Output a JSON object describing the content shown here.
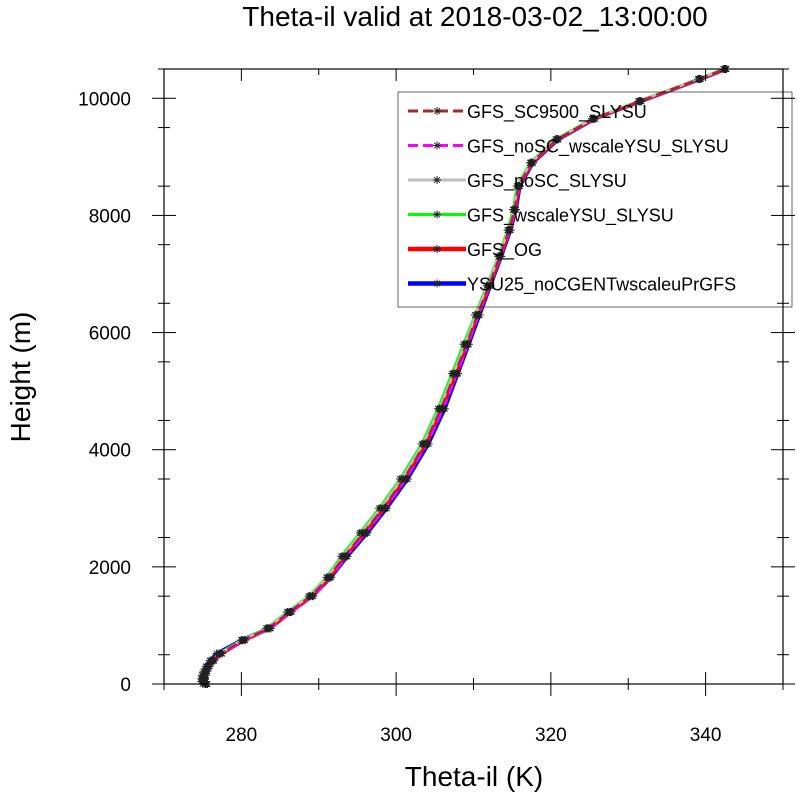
{
  "chart_data": {
    "type": "line",
    "title": "Theta-il valid at 2018-03-02_13:00:00",
    "xlabel": "Theta-il (K)",
    "ylabel": "Height (m)",
    "xlim": [
      270,
      350
    ],
    "ylim": [
      0,
      10500
    ],
    "xticks": [
      280,
      300,
      320,
      340
    ],
    "yticks": [
      0,
      2000,
      4000,
      6000,
      8000,
      10000
    ],
    "legend_position": "top-right",
    "grid": false,
    "series": [
      {
        "name": "GFS_SC9500_SLYSU",
        "color": "#a52a2a",
        "dash": "dashed",
        "points": [
          [
            275.5,
            0
          ],
          [
            275.3,
            40
          ],
          [
            275.2,
            90
          ],
          [
            275.3,
            150
          ],
          [
            275.5,
            220
          ],
          [
            275.8,
            300
          ],
          [
            276.3,
            400
          ],
          [
            277.3,
            520
          ],
          [
            280.2,
            750
          ],
          [
            283.5,
            950
          ],
          [
            286.2,
            1230
          ],
          [
            289.0,
            1500
          ],
          [
            291.3,
            1820
          ],
          [
            293.3,
            2180
          ],
          [
            295.8,
            2580
          ],
          [
            298.3,
            3000
          ],
          [
            301.0,
            3500
          ],
          [
            303.7,
            4100
          ],
          [
            305.8,
            4700
          ],
          [
            307.6,
            5300
          ],
          [
            309.1,
            5800
          ],
          [
            310.5,
            6300
          ],
          [
            312.0,
            6800
          ],
          [
            313.4,
            7300
          ],
          [
            314.6,
            7750
          ],
          [
            315.3,
            8100
          ],
          [
            315.8,
            8500
          ],
          [
            317.5,
            8900
          ],
          [
            320.8,
            9300
          ],
          [
            325.5,
            9650
          ],
          [
            331.5,
            9950
          ],
          [
            339.2,
            10330
          ],
          [
            342.5,
            10500
          ]
        ]
      },
      {
        "name": "GFS_noSC_wscaleYSU_SLYSU",
        "color": "#ff00ff",
        "dash": "dashed",
        "points": [
          [
            275.6,
            0
          ],
          [
            275.4,
            40
          ],
          [
            275.3,
            90
          ],
          [
            275.4,
            150
          ],
          [
            275.6,
            220
          ],
          [
            275.9,
            300
          ],
          [
            276.4,
            400
          ],
          [
            277.5,
            520
          ],
          [
            280.5,
            750
          ],
          [
            283.8,
            950
          ],
          [
            286.5,
            1230
          ],
          [
            289.3,
            1500
          ],
          [
            291.6,
            1820
          ],
          [
            293.6,
            2180
          ],
          [
            296.1,
            2580
          ],
          [
            298.6,
            3000
          ],
          [
            301.3,
            3500
          ],
          [
            304.0,
            4100
          ],
          [
            306.1,
            4700
          ],
          [
            307.9,
            5300
          ],
          [
            309.3,
            5800
          ],
          [
            310.7,
            6300
          ],
          [
            312.1,
            6800
          ],
          [
            313.5,
            7300
          ],
          [
            314.7,
            7750
          ],
          [
            315.4,
            8100
          ],
          [
            315.9,
            8500
          ],
          [
            317.6,
            8900
          ],
          [
            320.9,
            9300
          ],
          [
            325.6,
            9650
          ],
          [
            331.6,
            9950
          ],
          [
            339.3,
            10330
          ],
          [
            342.6,
            10500
          ]
        ]
      },
      {
        "name": "GFS_noSC_SLYSU",
        "color": "#bebebe",
        "dash": "solid",
        "points": [
          [
            275.4,
            0
          ],
          [
            275.2,
            40
          ],
          [
            275.1,
            90
          ],
          [
            275.2,
            150
          ],
          [
            275.4,
            220
          ],
          [
            275.7,
            300
          ],
          [
            276.2,
            400
          ],
          [
            277.2,
            520
          ],
          [
            280.1,
            750
          ],
          [
            283.3,
            950
          ],
          [
            286.0,
            1230
          ],
          [
            288.8,
            1500
          ],
          [
            291.1,
            1820
          ],
          [
            293.1,
            2180
          ],
          [
            295.5,
            2580
          ],
          [
            298.0,
            3000
          ],
          [
            300.7,
            3500
          ],
          [
            303.5,
            4100
          ],
          [
            305.6,
            4700
          ],
          [
            307.4,
            5300
          ],
          [
            308.9,
            5800
          ],
          [
            310.3,
            6300
          ],
          [
            311.8,
            6800
          ],
          [
            313.3,
            7300
          ],
          [
            314.5,
            7750
          ],
          [
            315.2,
            8100
          ],
          [
            315.7,
            8500
          ],
          [
            317.4,
            8900
          ],
          [
            320.7,
            9300
          ],
          [
            325.4,
            9650
          ],
          [
            331.4,
            9950
          ],
          [
            339.1,
            10330
          ],
          [
            342.4,
            10500
          ]
        ]
      },
      {
        "name": "GFS_wscaleYSU_SLYSU",
        "color": "#00ff00",
        "dash": "solid",
        "points": [
          [
            275.3,
            0
          ],
          [
            275.1,
            40
          ],
          [
            275.0,
            90
          ],
          [
            275.1,
            150
          ],
          [
            275.3,
            220
          ],
          [
            275.6,
            300
          ],
          [
            276.1,
            400
          ],
          [
            277.1,
            520
          ],
          [
            280.0,
            750
          ],
          [
            283.2,
            950
          ],
          [
            285.9,
            1230
          ],
          [
            288.7,
            1500
          ],
          [
            291.0,
            1820
          ],
          [
            292.9,
            2180
          ],
          [
            295.3,
            2580
          ],
          [
            297.8,
            3000
          ],
          [
            300.5,
            3500
          ],
          [
            303.3,
            4100
          ],
          [
            305.4,
            4700
          ],
          [
            307.2,
            5300
          ],
          [
            308.7,
            5800
          ],
          [
            310.2,
            6300
          ],
          [
            311.7,
            6800
          ],
          [
            313.2,
            7300
          ],
          [
            314.4,
            7750
          ],
          [
            315.1,
            8100
          ],
          [
            315.6,
            8500
          ],
          [
            317.3,
            8900
          ],
          [
            320.6,
            9300
          ],
          [
            325.3,
            9650
          ],
          [
            331.3,
            9950
          ],
          [
            339.0,
            10330
          ],
          [
            342.3,
            10500
          ]
        ]
      },
      {
        "name": "GFS_OG",
        "color": "#ff0000",
        "dash": "solid",
        "points": [
          [
            275.6,
            0
          ],
          [
            275.4,
            40
          ],
          [
            275.3,
            90
          ],
          [
            275.4,
            150
          ],
          [
            275.6,
            220
          ],
          [
            275.9,
            300
          ],
          [
            276.5,
            400
          ],
          [
            277.5,
            520
          ],
          [
            280.4,
            750
          ],
          [
            283.7,
            950
          ],
          [
            286.4,
            1230
          ],
          [
            289.2,
            1500
          ],
          [
            291.5,
            1820
          ],
          [
            293.5,
            2180
          ],
          [
            296.0,
            2580
          ],
          [
            298.5,
            3000
          ],
          [
            301.2,
            3500
          ],
          [
            303.9,
            4100
          ],
          [
            306.0,
            4700
          ],
          [
            307.8,
            5300
          ],
          [
            309.2,
            5800
          ],
          [
            310.6,
            6300
          ],
          [
            312.1,
            6800
          ],
          [
            313.5,
            7300
          ],
          [
            314.7,
            7750
          ],
          [
            315.4,
            8100
          ],
          [
            315.9,
            8500
          ],
          [
            317.6,
            8900
          ],
          [
            320.9,
            9300
          ],
          [
            325.6,
            9650
          ],
          [
            331.6,
            9950
          ],
          [
            339.3,
            10330
          ],
          [
            342.6,
            10500
          ]
        ]
      },
      {
        "name": "YSU25_noCGENTwscaleuPrGFS",
        "color": "#0000ff",
        "dash": "solid",
        "points": [
          [
            275.0,
            0
          ],
          [
            274.8,
            40
          ],
          [
            274.8,
            90
          ],
          [
            274.9,
            150
          ],
          [
            275.1,
            220
          ],
          [
            275.4,
            300
          ],
          [
            275.9,
            400
          ],
          [
            276.8,
            520
          ],
          [
            280.0,
            750
          ],
          [
            283.4,
            950
          ],
          [
            286.3,
            1230
          ],
          [
            289.2,
            1500
          ],
          [
            291.6,
            1820
          ],
          [
            293.7,
            2180
          ],
          [
            296.3,
            2580
          ],
          [
            298.8,
            3000
          ],
          [
            301.5,
            3500
          ],
          [
            304.2,
            4100
          ],
          [
            306.3,
            4700
          ],
          [
            308.0,
            5300
          ],
          [
            309.4,
            5800
          ],
          [
            310.8,
            6300
          ],
          [
            312.2,
            6800
          ],
          [
            313.6,
            7300
          ],
          [
            314.8,
            7750
          ],
          [
            315.5,
            8100
          ],
          [
            316.0,
            8500
          ],
          [
            317.7,
            8900
          ],
          [
            321.0,
            9300
          ],
          [
            325.7,
            9650
          ],
          [
            331.7,
            9950
          ],
          [
            339.4,
            10330
          ],
          [
            342.7,
            10500
          ]
        ]
      }
    ]
  }
}
